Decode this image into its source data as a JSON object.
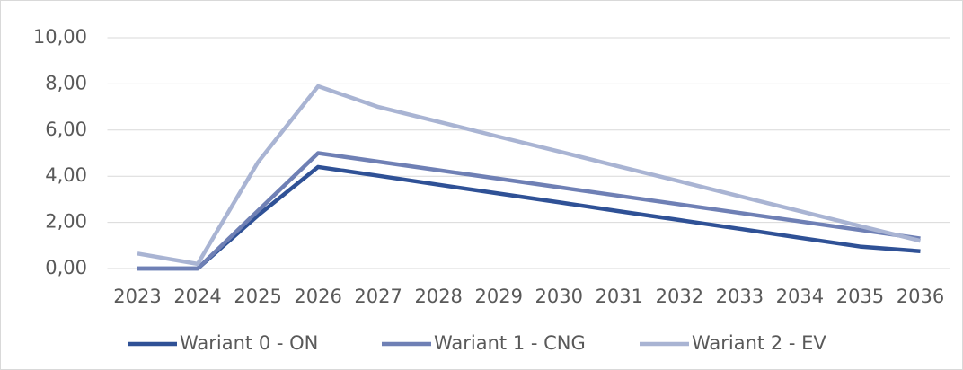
{
  "chart_data": {
    "type": "line",
    "categories": [
      "2023",
      "2024",
      "2025",
      "2026",
      "2027",
      "2028",
      "2029",
      "2030",
      "2031",
      "2032",
      "2033",
      "2034",
      "2035",
      "2036"
    ],
    "series": [
      {
        "name": "Wariant 0 - ON",
        "color": "#2f5196",
        "values": [
          0,
          0,
          2.3,
          4.4,
          4.02,
          3.63,
          3.25,
          2.87,
          2.48,
          2.1,
          1.72,
          1.33,
          0.95,
          0.75
        ]
      },
      {
        "name": "Wariant 1 - CNG",
        "color": "#6f80b5",
        "values": [
          0,
          0,
          2.5,
          5.0,
          4.63,
          4.26,
          3.89,
          3.52,
          3.15,
          2.78,
          2.41,
          2.04,
          1.67,
          1.3
        ]
      },
      {
        "name": "Wariant 2 - EV",
        "color": "#a9b4d3",
        "values": [
          0.65,
          0.2,
          4.6,
          7.9,
          7.0,
          6.36,
          5.71,
          5.07,
          4.42,
          3.78,
          3.13,
          2.49,
          1.84,
          1.2
        ]
      }
    ],
    "ylim": [
      0,
      10
    ],
    "yticks": [
      {
        "value": 0,
        "label": "0,00"
      },
      {
        "value": 2,
        "label": "2,00"
      },
      {
        "value": 4,
        "label": "4,00"
      },
      {
        "value": 6,
        "label": "6,00"
      },
      {
        "value": 8,
        "label": "8,00"
      },
      {
        "value": 10,
        "label": "10,00"
      }
    ],
    "grid": true,
    "legend": "bottom"
  }
}
